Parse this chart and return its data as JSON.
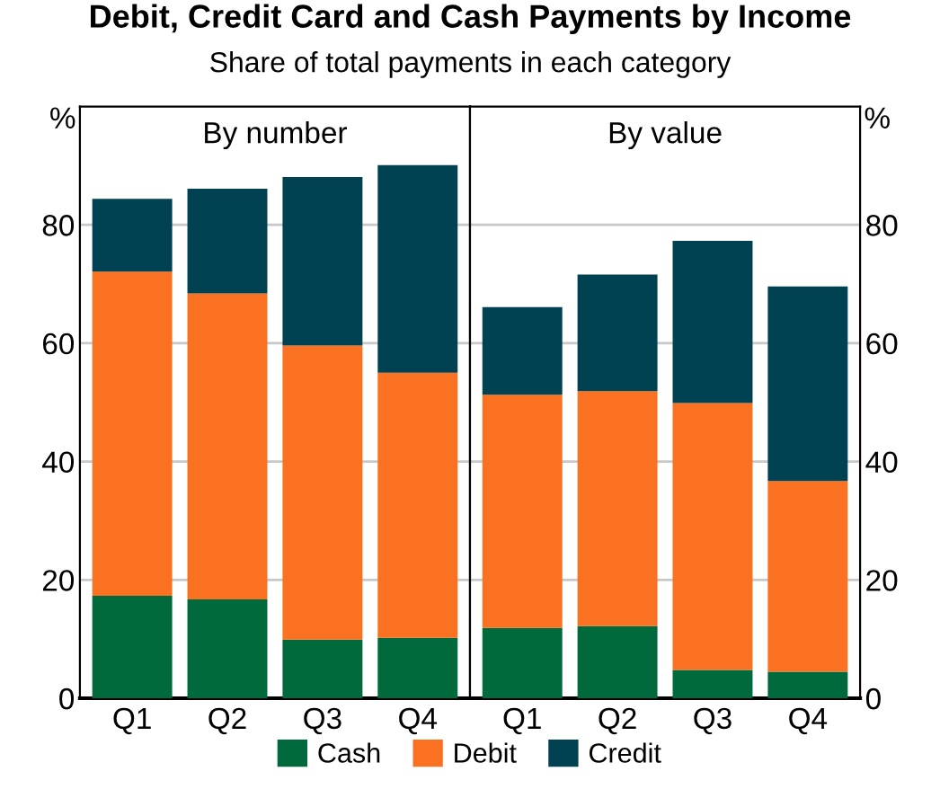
{
  "chart_data": [
    {
      "type": "bar",
      "stacked": true,
      "title": "Debit, Credit Card and Cash Payments by Income",
      "subtitle": "Share of total payments in each category",
      "annotations": [
        "By number"
      ],
      "ylabel": "%",
      "categories": [
        "Q1",
        "Q2",
        "Q3",
        "Q4"
      ],
      "series": [
        {
          "name": "Cash",
          "color": "#006a3d",
          "values": [
            17.3,
            16.7,
            9.9,
            10.2
          ]
        },
        {
          "name": "Debit",
          "color": "#f97121",
          "values": [
            54.8,
            51.7,
            49.7,
            44.8
          ]
        },
        {
          "name": "Credit",
          "color": "#004152",
          "values": [
            12.3,
            17.7,
            28.5,
            35.1
          ]
        }
      ],
      "ylim": [
        0,
        100
      ],
      "yticks": [
        0,
        20,
        40,
        60,
        80
      ],
      "grid": "y",
      "legend": "bottom"
    },
    {
      "type": "bar",
      "stacked": true,
      "annotations": [
        "By value"
      ],
      "ylabel": "%",
      "categories": [
        "Q1",
        "Q2",
        "Q3",
        "Q4"
      ],
      "series": [
        {
          "name": "Cash",
          "color": "#006a3d",
          "values": [
            11.9,
            12.2,
            4.8,
            4.5
          ]
        },
        {
          "name": "Debit",
          "color": "#f97121",
          "values": [
            39.4,
            39.7,
            45.1,
            32.2
          ]
        },
        {
          "name": "Credit",
          "color": "#004152",
          "values": [
            14.8,
            19.7,
            27.4,
            32.9
          ]
        }
      ],
      "ylim": [
        0,
        100
      ],
      "yticks": [
        0,
        20,
        40,
        60,
        80
      ],
      "grid": "y"
    }
  ]
}
